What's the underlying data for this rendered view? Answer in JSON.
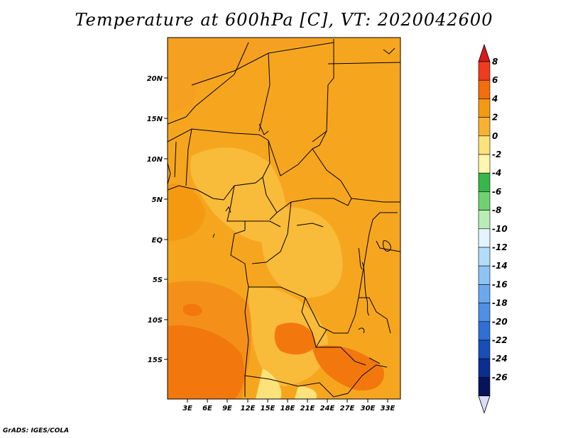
{
  "title": "Temperature at 600hPa [C], VT: 2020042600",
  "credit": "GrADS: IGES/COLA",
  "map": {
    "lat_labels": [
      "20N",
      "15N",
      "10N",
      "5N",
      "EQ",
      "5S",
      "10S",
      "15S"
    ],
    "lon_labels": [
      "3E",
      "6E",
      "9E",
      "12E",
      "15E",
      "18E",
      "21E",
      "24E",
      "27E",
      "30E",
      "33E"
    ]
  },
  "colorbar": {
    "labels": [
      "8",
      "6",
      "4",
      "2",
      "0",
      "-2",
      "-4",
      "-6",
      "-8",
      "-10",
      "-12",
      "-14",
      "-16",
      "-18",
      "-20",
      "-22",
      "-24",
      "-26"
    ],
    "colors": [
      "#d7191c",
      "#f03b20",
      "#f46d0a",
      "#f59a10",
      "#f7b234",
      "#fce27a",
      "#fff6b0",
      "#38b64a",
      "#71d171",
      "#b8edb8",
      "#e3f4ff",
      "#b3dcfb",
      "#8dc4f5",
      "#6aa9ee",
      "#4f8fe5",
      "#2f6fd6",
      "#174fb8",
      "#0a2f90",
      "#06145c",
      "#dcdcf5"
    ]
  }
}
